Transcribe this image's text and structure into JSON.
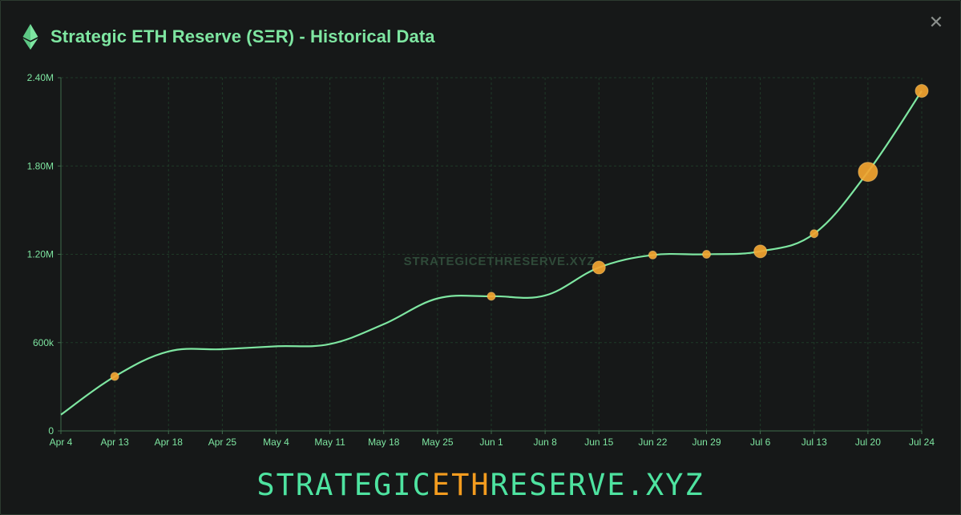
{
  "header": {
    "title": "Strategic ETH Reserve (SΞR) - Historical Data",
    "icon": "ethereum-icon",
    "close_icon": "close-icon",
    "close_glyph": "✕"
  },
  "watermark": "STRATEGICETHRESERVE.XYZ",
  "footer": {
    "prefix": "STRATEGIC",
    "accent": "ETH",
    "suffix": "RESERVE.XYZ"
  },
  "colors": {
    "background": "#161818",
    "line": "#7ee6a1",
    "grid": "#1f3a27",
    "marker": "#f3a530",
    "accent": "#f39c1f",
    "footer": "#4ee3a0"
  },
  "chart_data": {
    "type": "line",
    "title": "Strategic ETH Reserve (SΞR) - Historical Data",
    "xlabel": "",
    "ylabel": "",
    "ylim": [
      0,
      2400000
    ],
    "y_ticks": [
      0,
      600000,
      1200000,
      1800000,
      2400000
    ],
    "y_tick_labels": [
      "0",
      "600k",
      "1.20M",
      "1.80M",
      "2.40M"
    ],
    "x_tick_labels": [
      "Apr 4",
      "Apr 13",
      "Apr 18",
      "Apr 25",
      "May 4",
      "May 11",
      "May 18",
      "May 25",
      "Jun 1",
      "Jun 8",
      "Jun 15",
      "Jun 22",
      "Jun 29",
      "Jul 6",
      "Jul 13",
      "Jul 20",
      "Jul 24"
    ],
    "grid": true,
    "series": [
      {
        "values": [
          110000,
          370000,
          540000,
          555000,
          575000,
          590000,
          725000,
          900000,
          915000,
          920000,
          1110000,
          1195000,
          1200000,
          1220000,
          1340000,
          1760000,
          2310000
        ]
      }
    ],
    "markers": [
      {
        "x": "Apr 13",
        "value": 370000,
        "size": "small"
      },
      {
        "x": "Jun 1",
        "value": 915000,
        "size": "small"
      },
      {
        "x": "Jun 15",
        "value": 1110000,
        "size": "medium"
      },
      {
        "x": "Jun 22",
        "value": 1195000,
        "size": "small"
      },
      {
        "x": "Jun 29",
        "value": 1200000,
        "size": "small"
      },
      {
        "x": "Jul 6",
        "value": 1220000,
        "size": "medium"
      },
      {
        "x": "Jul 13",
        "value": 1340000,
        "size": "small"
      },
      {
        "x": "Jul 20",
        "value": 1760000,
        "size": "large"
      },
      {
        "x": "Jul 24",
        "value": 2310000,
        "size": "medium"
      }
    ]
  }
}
